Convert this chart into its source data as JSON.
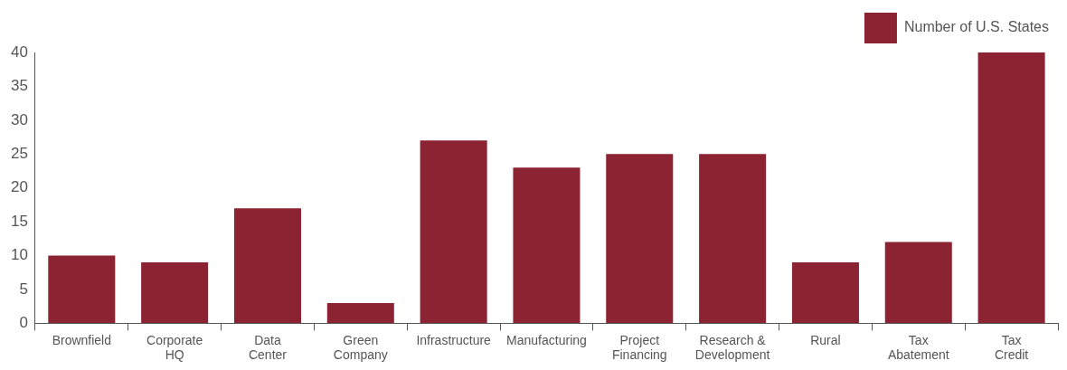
{
  "chart_data": {
    "type": "bar",
    "categories": [
      "Brownfield",
      "Corporate HQ",
      "Data Center",
      "Green Company",
      "Infrastructure",
      "Manufacturing",
      "Project Financing",
      "Research & Development",
      "Rural",
      "Tax Abatement",
      "Tax Credit"
    ],
    "series": [
      {
        "name": "Number of U.S. States",
        "color": "#8b2332",
        "values": [
          10,
          9,
          17,
          3,
          27,
          23,
          25,
          25,
          9,
          12,
          40
        ]
      }
    ],
    "ylim": [
      0,
      40
    ],
    "yticks": [
      0,
      5,
      10,
      15,
      20,
      25,
      30,
      35,
      40
    ],
    "grid": false,
    "legend": "top right"
  }
}
